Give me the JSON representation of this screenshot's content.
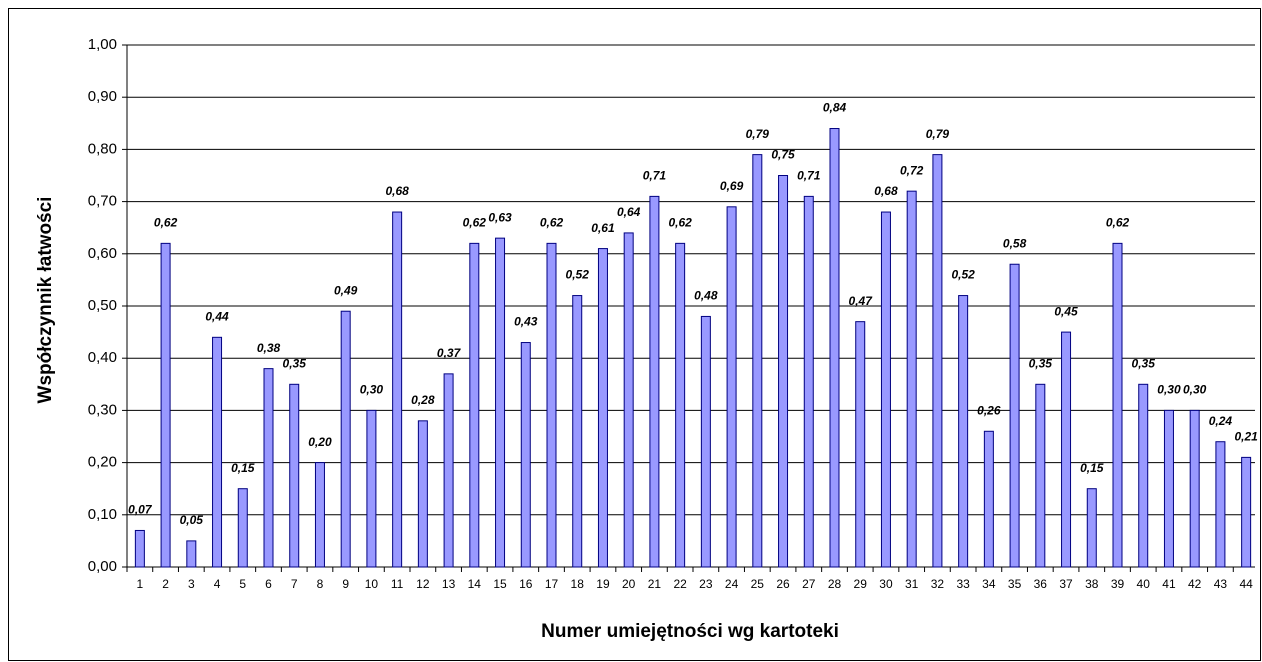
{
  "chart_data": {
    "type": "bar",
    "y_label": "Współczynnik łatwości",
    "x_label": "Numer umiejętności wg kartoteki",
    "categories": [
      "1",
      "2",
      "3",
      "4",
      "5",
      "6",
      "7",
      "8",
      "9",
      "10",
      "11",
      "12",
      "13",
      "14",
      "15",
      "16",
      "17",
      "18",
      "19",
      "20",
      "21",
      "22",
      "23",
      "24",
      "25",
      "26",
      "27",
      "28",
      "29",
      "30",
      "31",
      "32",
      "33",
      "34",
      "35",
      "36",
      "37",
      "38",
      "39",
      "40",
      "41",
      "42",
      "43",
      "44"
    ],
    "values": [
      0.07,
      0.62,
      0.05,
      0.44,
      0.15,
      0.38,
      0.35,
      0.2,
      0.49,
      0.3,
      0.68,
      0.28,
      0.37,
      0.62,
      0.63,
      0.43,
      0.62,
      0.52,
      0.61,
      0.64,
      0.71,
      0.62,
      0.48,
      0.69,
      0.79,
      0.75,
      0.71,
      0.84,
      0.47,
      0.68,
      0.72,
      0.79,
      0.52,
      0.26,
      0.58,
      0.35,
      0.45,
      0.15,
      0.62,
      0.35,
      0.3,
      0.3,
      0.24,
      0.21
    ],
    "value_labels": [
      "0,07",
      "0,62",
      "0,05",
      "0,44",
      "0,15",
      "0,38",
      "0,35",
      "0,20",
      "0,49",
      "0,30",
      "0,68",
      "0,28",
      "0,37",
      "0,62",
      "0,63",
      "0,43",
      "0,62",
      "0,52",
      "0,61",
      "0,64",
      "0,71",
      "0,62",
      "0,48",
      "0,69",
      "0,79",
      "0,75",
      "0,71",
      "0,84",
      "0,47",
      "0,68",
      "0,72",
      "0,79",
      "0,52",
      "0,26",
      "0,58",
      "0,35",
      "0,45",
      "0,15",
      "0,62",
      "0,35",
      "0,30",
      "0,30",
      "0,24",
      "0,21"
    ],
    "color": "#9999ff",
    "ylim": [
      0,
      1
    ],
    "yticks": [
      {
        "value": 0,
        "label": "0,00"
      },
      {
        "value": 0.1,
        "label": "0,10"
      },
      {
        "value": 0.2,
        "label": "0,20"
      },
      {
        "value": 0.3,
        "label": "0,30"
      },
      {
        "value": 0.4,
        "label": "0,40"
      },
      {
        "value": 0.5,
        "label": "0,50"
      },
      {
        "value": 0.6,
        "label": "0,60"
      },
      {
        "value": 0.7,
        "label": "0,70"
      },
      {
        "value": 0.8,
        "label": "0,80"
      },
      {
        "value": 0.9,
        "label": "0,90"
      },
      {
        "value": 1,
        "label": "1,00"
      }
    ],
    "grid": true
  }
}
